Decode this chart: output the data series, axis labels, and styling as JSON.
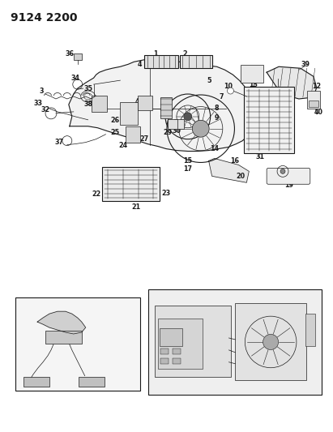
{
  "title": "9124 2200",
  "title_fontsize": 10,
  "title_fontweight": "bold",
  "bg_color": "#ffffff",
  "fig_width": 4.11,
  "fig_height": 5.33,
  "dpi": 100,
  "line_color": "#1a1a1a",
  "label_fontsize": 5.8,
  "label_fontsize_sm": 5.0
}
